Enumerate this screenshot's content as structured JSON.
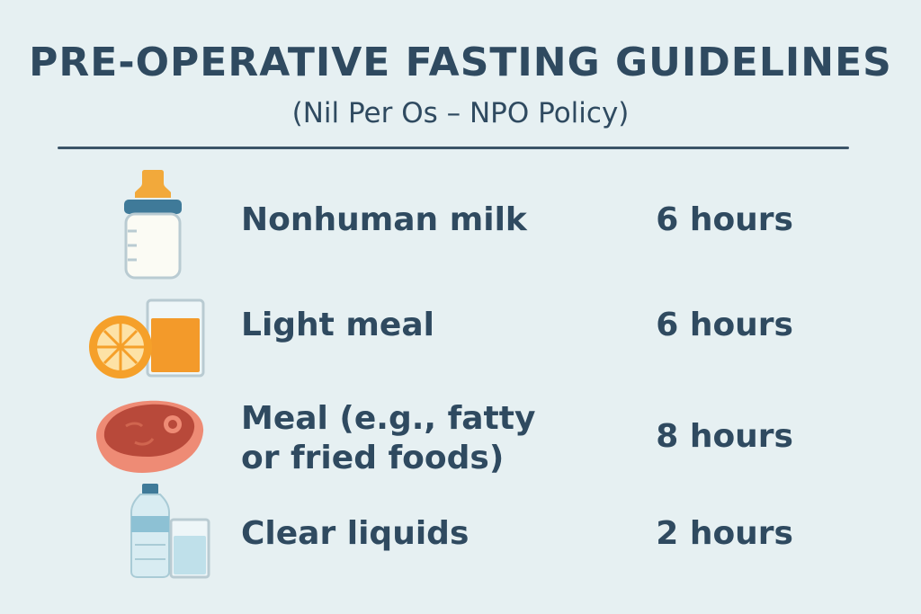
{
  "header": {
    "title": "PRE-OPERATIVE FASTING GUIDELINES",
    "subtitle": "(Nil  Per Os – NPO Policy)"
  },
  "rows": [
    {
      "label": "Nonhuman milk",
      "time": "6 hours",
      "icon": "baby-bottle-icon"
    },
    {
      "label": "Light meal",
      "time": "6 hours",
      "icon": "orange-and-juice-icon"
    },
    {
      "label": "Meal (e.g., fatty\nor fried foods)",
      "time": "8 hours",
      "icon": "steak-icon"
    },
    {
      "label": "Clear liquids",
      "time": "2 hours",
      "icon": "water-bottle-and-glass-icon"
    }
  ],
  "colors": {
    "background": "#e6f0f2",
    "text": "#2f4a60",
    "bottle_nipple": "#f2a93b",
    "orange": "#f5a02a",
    "steak": "#c0523f",
    "water": "#bfe0ea"
  }
}
